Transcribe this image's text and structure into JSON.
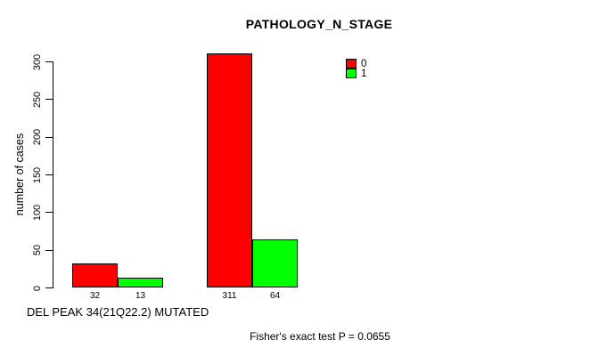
{
  "title": "PATHOLOGY_N_STAGE",
  "colors": {
    "series0": "#FF0000",
    "series1": "#00FF00",
    "axis": "#000000",
    "background": "#FFFFFF"
  },
  "chart_data": {
    "type": "bar",
    "title": "PATHOLOGY_N_STAGE",
    "xlabel": "DEL PEAK 34(21Q22.2) MUTATED",
    "ylabel": "number of cases",
    "ylim": [
      0,
      300
    ],
    "yticks": [
      0,
      50,
      100,
      150,
      200,
      250,
      300
    ],
    "grid": false,
    "legend_position": "top-right",
    "series": [
      {
        "name": "0",
        "color": "#FF0000",
        "values": [
          32,
          311
        ]
      },
      {
        "name": "1",
        "color": "#00FF00",
        "values": [
          13,
          64
        ]
      }
    ],
    "bar_value_labels": [
      "32",
      "13",
      "311",
      "64"
    ],
    "annotation": "Fisher's exact test P = 0.0655"
  }
}
